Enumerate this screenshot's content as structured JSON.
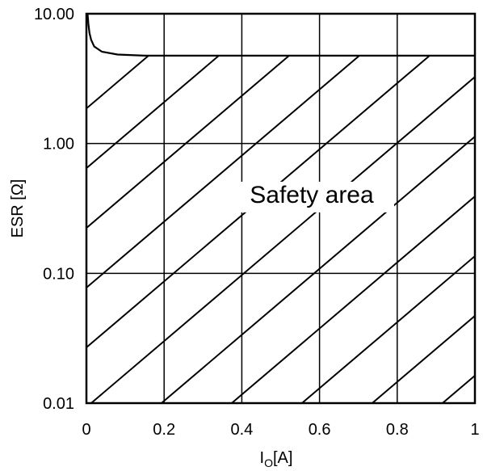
{
  "chart_data": {
    "type": "line",
    "title": "",
    "xlabel": {
      "main": "I",
      "sub": "O",
      "unit": "[A]"
    },
    "ylabel": "ESR [Ω]",
    "x_ticks": [
      {
        "value": 0,
        "label": "0"
      },
      {
        "value": 0.2,
        "label": "0.2"
      },
      {
        "value": 0.4,
        "label": "0.4"
      },
      {
        "value": 0.6,
        "label": "0.6"
      },
      {
        "value": 0.8,
        "label": "0.8"
      },
      {
        "value": 1,
        "label": "1"
      }
    ],
    "y_ticks": [
      {
        "value": 0.01,
        "label": "0.01"
      },
      {
        "value": 0.1,
        "label": "0.10"
      },
      {
        "value": 1,
        "label": "1.00"
      },
      {
        "value": 10,
        "label": "10.00"
      }
    ],
    "xlim": [
      0,
      1
    ],
    "ylim": [
      0.01,
      10
    ],
    "y_scale": "log",
    "grid": true,
    "series": [
      {
        "x": [
          0.003,
          0.005,
          0.008,
          0.012,
          0.02,
          0.04,
          0.08,
          0.15,
          0.3,
          0.6,
          1.0
        ],
        "y": [
          10,
          8.4,
          7.1,
          6.3,
          5.6,
          5.1,
          4.85,
          4.75,
          4.75,
          4.75,
          4.75
        ]
      }
    ],
    "hatch_region": {
      "upper_limit_y": 4.75
    },
    "annotations": [
      {
        "text": "Safety area",
        "x": 0.58,
        "y": 0.35
      }
    ],
    "color": "#000000"
  }
}
